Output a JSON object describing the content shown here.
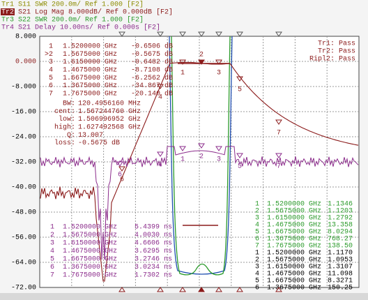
{
  "header": {
    "traces": [
      {
        "id": "Tr1",
        "param": "S11",
        "setting": "SWR 200.0m/ Ref 1.000 [F2]"
      },
      {
        "id": "Tr2",
        "param": "S21",
        "setting": "Log Mag 8.000dB/ Ref 0.000dB [F2]"
      },
      {
        "id": "Tr3",
        "param": "S22",
        "setting": "SWR 200.0m/ Ref 1.000 [F2]"
      },
      {
        "id": "Tr4",
        "param": "S21",
        "setting": "Delay 10.00ns/ Ref 0.000s [F2]"
      }
    ]
  },
  "y_axis": {
    "labels": [
      "8.000",
      "0.000",
      "-8.000",
      "-16.00",
      "-24.00",
      "-32.00",
      "-40.00",
      "-48.00",
      "-56.00",
      "-64.00",
      "-72.00"
    ]
  },
  "tr2_markers": {
    "rows": [
      [
        "1",
        "1.5200000 GHz",
        "-0.6506 dB"
      ],
      [
        ">2",
        "1.5675000 GHz",
        "-0.5675 dB"
      ],
      [
        "3",
        "1.6150000 GHz",
        "-0.6482 dB"
      ],
      [
        "4",
        "1.4675000 GHz",
        "-8.7108 dB"
      ],
      [
        "5",
        "1.6675000 GHz",
        "-6.2562 dB"
      ],
      [
        "6",
        "1.3675000 GHz",
        "-34.867 dB"
      ],
      [
        "7",
        "1.7675000 GHz",
        "-20.140 dB"
      ]
    ]
  },
  "limit_status": {
    "lines": [
      "Tr1: Pass",
      "Tr2: Pass",
      "Ripl2: Pass"
    ]
  },
  "bw_stats": {
    "rows": [
      [
        "BW:",
        "120.4956160 MHz"
      ],
      [
        "cent:",
        "1.567244760 GHz"
      ],
      [
        "low:",
        "1.506996952 GHz"
      ],
      [
        "high:",
        "1.627492568 GHz"
      ],
      [
        "Q:",
        "13.007"
      ],
      [
        "loss:",
        "-0.5675 dB"
      ]
    ]
  },
  "tr4_markers": {
    "rows": [
      [
        "1",
        "1.5200000 GHz",
        "5.4399 ns"
      ],
      [
        "2",
        "1.5675000 GHz",
        "4.0030 ns"
      ],
      [
        "3",
        "1.6150000 GHz",
        "4.6606 ns"
      ],
      [
        "4",
        "1.4675000 GHz",
        "3.6295 ns"
      ],
      [
        "5",
        "1.6675000 GHz",
        "3.2746 ns"
      ],
      [
        "6",
        "1.3675000 GHz",
        "3.0234 ns"
      ],
      [
        "7",
        "1.7675000 GHz",
        "1.7302 ns"
      ]
    ]
  },
  "tr3_markers": {
    "rows": [
      [
        "1",
        "1.5200000 GHz",
        "1.1346"
      ],
      [
        "2",
        "1.5675000 GHz",
        "1.1203"
      ],
      [
        "3",
        "1.6150000 GHz",
        "1.2792"
      ],
      [
        "4",
        "1.4675000 GHz",
        "13.358"
      ],
      [
        "5",
        "1.6675000 GHz",
        "8.0294"
      ],
      [
        "6",
        "1.3675000 GHz",
        "768.27"
      ],
      [
        "7",
        "1.7675000 GHz",
        "138.50"
      ]
    ]
  },
  "tr1_markers": {
    "rows": [
      [
        "1",
        "1.5200000 GHz",
        "1.1170"
      ],
      [
        "2",
        "1.5675000 GHz",
        "1.0953"
      ],
      [
        "3",
        "1.6150000 GHz",
        "1.3107"
      ],
      [
        "4",
        "1.4675000 GHz",
        "11.098"
      ],
      [
        "5",
        "1.6675000 GHz",
        "8.3271"
      ],
      [
        "6",
        "1.3675000 GHz",
        "150.25"
      ]
    ]
  },
  "plot_markers": {
    "labels": [
      "1",
      "2",
      "3",
      "4",
      "5",
      "6",
      "7"
    ]
  }
}
